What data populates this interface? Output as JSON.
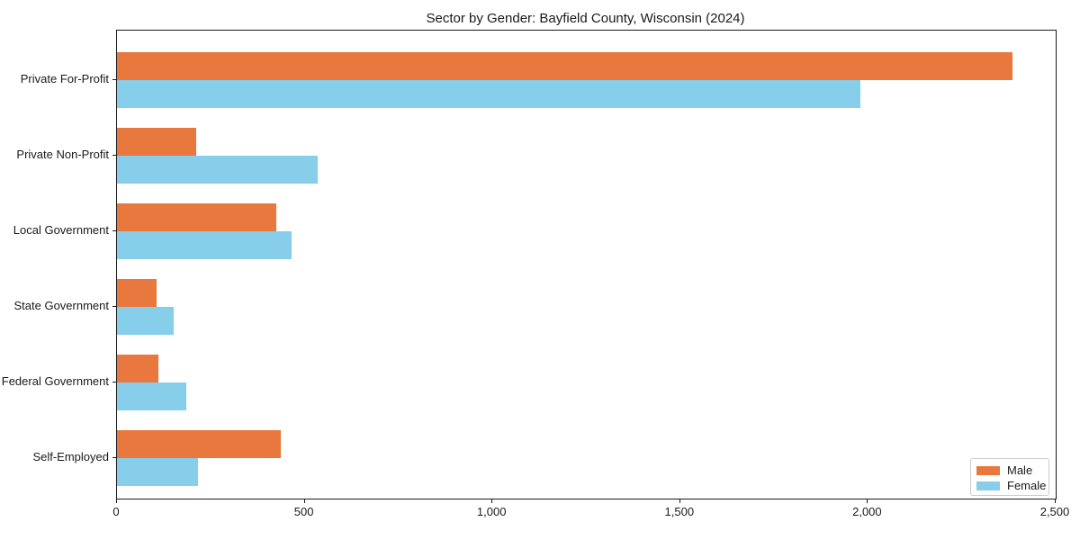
{
  "chart_data": {
    "type": "bar",
    "orientation": "horizontal",
    "title": "Sector by Gender: Bayfield County, Wisconsin (2024)",
    "categories": [
      "Private For-Profit",
      "Private Non-Profit",
      "Local Government",
      "State Government",
      "Federal Government",
      "Self-Employed"
    ],
    "series": [
      {
        "name": "Male",
        "color": "#e8783d",
        "values": [
          2385,
          210,
          425,
          105,
          110,
          435
        ]
      },
      {
        "name": "Female",
        "color": "#87ceeb",
        "values": [
          1980,
          535,
          465,
          150,
          185,
          215
        ]
      }
    ],
    "xlabel": "",
    "ylabel": "",
    "xlim": [
      0,
      2500
    ],
    "x_ticks": [
      0,
      500,
      1000,
      1500,
      2000,
      2500
    ],
    "x_tick_labels": [
      "0",
      "500",
      "1,000",
      "1,500",
      "2,000",
      "2,500"
    ],
    "grid": false,
    "legend_position": "lower right",
    "frame": true,
    "text_color": "#1a1a1a"
  }
}
